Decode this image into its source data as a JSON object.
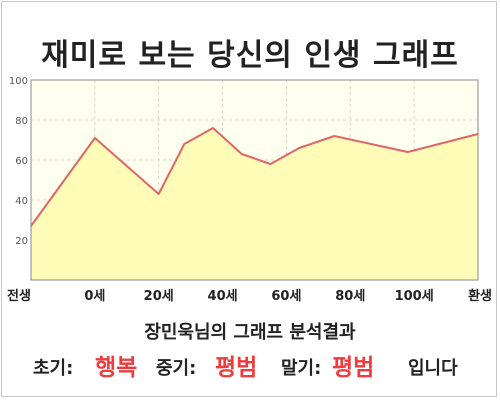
{
  "title": "재미로 보는 당신의 인생 그래프",
  "chart_data": {
    "type": "area",
    "x_labels": [
      "전생",
      "0세",
      "20세",
      "40세",
      "60세",
      "80세",
      "100세",
      "환생"
    ],
    "x_label_ages": [
      -20,
      0,
      20,
      40,
      60,
      80,
      100,
      120
    ],
    "points": [
      {
        "x": -20,
        "y": 27
      },
      {
        "x": 0,
        "y": 71
      },
      {
        "x": 20,
        "y": 43
      },
      {
        "x": 28,
        "y": 68
      },
      {
        "x": 37,
        "y": 76
      },
      {
        "x": 46,
        "y": 63
      },
      {
        "x": 55,
        "y": 58
      },
      {
        "x": 64,
        "y": 66
      },
      {
        "x": 75,
        "y": 72
      },
      {
        "x": 98,
        "y": 64
      },
      {
        "x": 120,
        "y": 73
      }
    ],
    "y_ticks": [
      20,
      40,
      60,
      80,
      100
    ],
    "ylim": [
      0,
      100
    ],
    "xlim": [
      -20,
      120
    ],
    "fill_color": "#fffcb8",
    "line_color": "#e06666",
    "plot_bg": "#fffff0",
    "grid": true
  },
  "result": {
    "subtitle": "장민욱님의 그래프 분석결과",
    "early_label": "초기:",
    "early_value": "행복",
    "middle_label": "중기:",
    "middle_value": "평범",
    "late_label": "말기:",
    "late_value": "평범",
    "ending": "입니다",
    "accent_color": "#ef3b3b"
  }
}
